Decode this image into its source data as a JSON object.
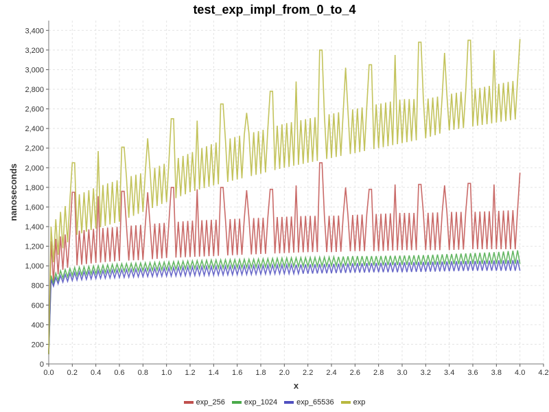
{
  "chart_data": {
    "type": "line",
    "title": "test_exp_impl_from_0_to_4",
    "xlabel": "x",
    "ylabel": "nanoseconds",
    "xlim": [
      0,
      4.2
    ],
    "ylim": [
      0,
      3500
    ],
    "x_ticks": [
      "0.0",
      "0.2",
      "0.4",
      "0.6",
      "0.8",
      "1.0",
      "1.2",
      "1.4",
      "1.6",
      "1.8",
      "2.0",
      "2.2",
      "2.4",
      "2.6",
      "2.8",
      "3.0",
      "3.2",
      "3.4",
      "3.6",
      "3.8",
      "4.0",
      "4.2"
    ],
    "y_ticks": [
      "0",
      "200",
      "400",
      "600",
      "800",
      "1,000",
      "1,200",
      "1,400",
      "1,600",
      "1,800",
      "2,000",
      "2,200",
      "2,400",
      "2,600",
      "2,800",
      "3,000",
      "3,200",
      "3,400"
    ],
    "grid": true,
    "legend_position": "bottom",
    "series": [
      {
        "name": "exp_256",
        "color": "#c0504d",
        "x": [
          0.0,
          0.02,
          0.1,
          0.2,
          0.4,
          0.6,
          0.8,
          1.0,
          1.2,
          1.4,
          1.6,
          1.8,
          2.0,
          2.2,
          2.4,
          2.6,
          2.8,
          3.0,
          3.2,
          3.4,
          3.6,
          3.8,
          4.0
        ],
        "low": [
          100,
          800,
          950,
          1000,
          1030,
          1050,
          1060,
          1080,
          1090,
          1100,
          1110,
          1120,
          1130,
          1140,
          1140,
          1150,
          1150,
          1160,
          1160,
          1160,
          1170,
          1170,
          1170
        ],
        "high": [
          100,
          1250,
          1300,
          1350,
          1380,
          1400,
          1420,
          1440,
          1460,
          1470,
          1480,
          1490,
          1500,
          1510,
          1510,
          1520,
          1530,
          1540,
          1540,
          1550,
          1550,
          1560,
          1570
        ],
        "spikes": [
          [
            0.21,
            1750
          ],
          [
            0.42,
            1710
          ],
          [
            0.63,
            1760
          ],
          [
            0.84,
            1750
          ],
          [
            1.05,
            1800
          ],
          [
            1.26,
            1780
          ],
          [
            1.47,
            1800
          ],
          [
            1.68,
            1770
          ],
          [
            1.89,
            1780
          ],
          [
            2.1,
            1820
          ],
          [
            2.31,
            2050
          ],
          [
            2.52,
            1800
          ],
          [
            2.73,
            1780
          ],
          [
            2.94,
            1830
          ],
          [
            3.15,
            1830
          ],
          [
            3.36,
            1820
          ],
          [
            3.57,
            1840
          ],
          [
            3.78,
            1830
          ],
          [
            4.0,
            1950
          ]
        ]
      },
      {
        "name": "exp_1024",
        "color": "#4aaa4a",
        "x": [
          0.0,
          0.02,
          0.1,
          0.2,
          0.4,
          0.6,
          0.8,
          1.0,
          1.2,
          1.4,
          1.6,
          1.8,
          2.0,
          2.2,
          2.4,
          2.6,
          2.8,
          3.0,
          3.2,
          3.4,
          3.6,
          3.8,
          4.0
        ],
        "low": [
          100,
          800,
          870,
          900,
          920,
          940,
          950,
          960,
          970,
          975,
          980,
          985,
          990,
          995,
          1000,
          1000,
          1005,
          1010,
          1010,
          1015,
          1020,
          1020,
          1020
        ],
        "high": [
          100,
          900,
          950,
          980,
          1000,
          1020,
          1030,
          1040,
          1050,
          1060,
          1065,
          1070,
          1080,
          1085,
          1090,
          1100,
          1100,
          1105,
          1110,
          1120,
          1130,
          1140,
          1160
        ]
      },
      {
        "name": "exp_65536",
        "color": "#5050c0",
        "x": [
          0.0,
          0.02,
          0.1,
          0.2,
          0.4,
          0.6,
          0.8,
          1.0,
          1.2,
          1.4,
          1.6,
          1.8,
          2.0,
          2.2,
          2.4,
          2.6,
          2.8,
          3.0,
          3.2,
          3.4,
          3.6,
          3.8,
          4.0
        ],
        "low": [
          100,
          780,
          830,
          850,
          870,
          880,
          890,
          895,
          900,
          905,
          910,
          915,
          920,
          920,
          925,
          930,
          935,
          935,
          940,
          945,
          950,
          950,
          950
        ],
        "high": [
          100,
          860,
          900,
          930,
          950,
          960,
          970,
          980,
          990,
          995,
          1000,
          1005,
          1010,
          1015,
          1020,
          1025,
          1030,
          1035,
          1040,
          1045,
          1050,
          1055,
          1060
        ]
      },
      {
        "name": "exp",
        "color": "#b8b840",
        "x": [
          0.0,
          0.02,
          0.1,
          0.2,
          0.4,
          0.6,
          0.8,
          1.0,
          1.2,
          1.4,
          1.6,
          1.8,
          2.0,
          2.2,
          2.4,
          2.6,
          2.8,
          3.0,
          3.2,
          3.4,
          3.6,
          3.8,
          4.0
        ],
        "low": [
          100,
          1000,
          1150,
          1300,
          1380,
          1450,
          1550,
          1650,
          1750,
          1820,
          1880,
          1940,
          2000,
          2050,
          2100,
          2150,
          2200,
          2250,
          2300,
          2380,
          2420,
          2460,
          2500
        ],
        "high": [
          100,
          1400,
          1550,
          1700,
          1800,
          1880,
          1950,
          2050,
          2150,
          2250,
          2320,
          2380,
          2450,
          2500,
          2550,
          2600,
          2650,
          2700,
          2700,
          2750,
          2800,
          2850,
          2900
        ],
        "spikes": [
          [
            0.21,
            2050
          ],
          [
            0.42,
            2170
          ],
          [
            0.63,
            2210
          ],
          [
            0.84,
            2300
          ],
          [
            1.05,
            2500
          ],
          [
            1.26,
            2480
          ],
          [
            1.47,
            2650
          ],
          [
            1.68,
            2560
          ],
          [
            1.89,
            2780
          ],
          [
            2.1,
            2880
          ],
          [
            2.31,
            3200
          ],
          [
            2.52,
            3020
          ],
          [
            2.73,
            3050
          ],
          [
            2.94,
            3150
          ],
          [
            3.15,
            3280
          ],
          [
            3.36,
            3170
          ],
          [
            3.57,
            3300
          ],
          [
            3.78,
            3200
          ],
          [
            4.0,
            3310
          ]
        ]
      }
    ]
  }
}
